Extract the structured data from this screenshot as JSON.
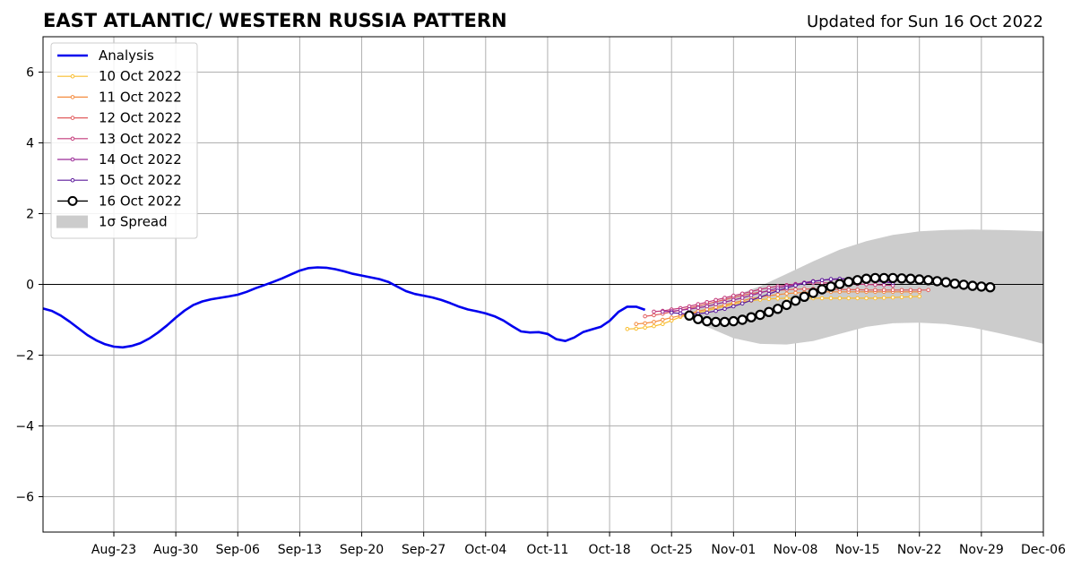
{
  "chart_data": {
    "type": "line",
    "title": "EAST ATLANTIC/ WESTERN RUSSIA PATTERN",
    "subtitle": "Updated for Sun 16 Oct 2022",
    "xlabel": "",
    "ylabel": "",
    "xlim": [
      "2022-08-15",
      "2022-12-06"
    ],
    "ylim": [
      -7,
      7
    ],
    "grid": true,
    "zero_line": true,
    "legend_position": "top-left",
    "x_tick_labels": [
      "Aug-23",
      "Aug-30",
      "Sep-06",
      "Sep-13",
      "Sep-20",
      "Sep-27",
      "Oct-04",
      "Oct-11",
      "Oct-18",
      "Oct-25",
      "Nov-01",
      "Nov-08",
      "Nov-15",
      "Nov-22",
      "Nov-29",
      "Dec-06"
    ],
    "x_tick_dates": [
      "2022-08-23",
      "2022-08-30",
      "2022-09-06",
      "2022-09-13",
      "2022-09-20",
      "2022-09-27",
      "2022-10-04",
      "2022-10-11",
      "2022-10-18",
      "2022-10-25",
      "2022-11-01",
      "2022-11-08",
      "2022-11-15",
      "2022-11-22",
      "2022-11-29",
      "2022-12-06"
    ],
    "y_ticks": [
      6,
      4,
      2,
      0,
      -2,
      -4,
      -6
    ],
    "y_tick_labels": [
      "6",
      "4",
      "2",
      "0",
      "−2",
      "−4",
      "−6"
    ],
    "analysis": {
      "name": "Analysis",
      "color": "#0000ee",
      "points": [
        [
          "2022-08-15",
          -0.68
        ],
        [
          "2022-08-16",
          -0.75
        ],
        [
          "2022-08-17",
          -0.88
        ],
        [
          "2022-08-18",
          -1.05
        ],
        [
          "2022-08-19",
          -1.24
        ],
        [
          "2022-08-20",
          -1.43
        ],
        [
          "2022-08-21",
          -1.58
        ],
        [
          "2022-08-22",
          -1.69
        ],
        [
          "2022-08-23",
          -1.76
        ],
        [
          "2022-08-24",
          -1.78
        ],
        [
          "2022-08-25",
          -1.74
        ],
        [
          "2022-08-26",
          -1.66
        ],
        [
          "2022-08-27",
          -1.53
        ],
        [
          "2022-08-28",
          -1.36
        ],
        [
          "2022-08-29",
          -1.16
        ],
        [
          "2022-08-30",
          -0.94
        ],
        [
          "2022-08-31",
          -0.74
        ],
        [
          "2022-09-01",
          -0.58
        ],
        [
          "2022-09-02",
          -0.48
        ],
        [
          "2022-09-03",
          -0.42
        ],
        [
          "2022-09-04",
          -0.38
        ],
        [
          "2022-09-05",
          -0.34
        ],
        [
          "2022-09-06",
          -0.29
        ],
        [
          "2022-09-07",
          -0.21
        ],
        [
          "2022-09-08",
          -0.11
        ],
        [
          "2022-09-09",
          -0.02
        ],
        [
          "2022-09-10",
          0.07
        ],
        [
          "2022-09-11",
          0.17
        ],
        [
          "2022-09-12",
          0.28
        ],
        [
          "2022-09-13",
          0.39
        ],
        [
          "2022-09-14",
          0.46
        ],
        [
          "2022-09-15",
          0.48
        ],
        [
          "2022-09-16",
          0.47
        ],
        [
          "2022-09-17",
          0.43
        ],
        [
          "2022-09-18",
          0.37
        ],
        [
          "2022-09-19",
          0.3
        ],
        [
          "2022-09-20",
          0.25
        ],
        [
          "2022-09-21",
          0.2
        ],
        [
          "2022-09-22",
          0.15
        ],
        [
          "2022-09-23",
          0.07
        ],
        [
          "2022-09-24",
          -0.06
        ],
        [
          "2022-09-25",
          -0.19
        ],
        [
          "2022-09-26",
          -0.27
        ],
        [
          "2022-09-27",
          -0.32
        ],
        [
          "2022-09-28",
          -0.37
        ],
        [
          "2022-09-29",
          -0.44
        ],
        [
          "2022-09-30",
          -0.53
        ],
        [
          "2022-10-01",
          -0.63
        ],
        [
          "2022-10-02",
          -0.71
        ],
        [
          "2022-10-03",
          -0.76
        ],
        [
          "2022-10-04",
          -0.82
        ],
        [
          "2022-10-05",
          -0.9
        ],
        [
          "2022-10-06",
          -1.02
        ],
        [
          "2022-10-07",
          -1.18
        ],
        [
          "2022-10-08",
          -1.33
        ],
        [
          "2022-10-09",
          -1.36
        ],
        [
          "2022-10-10",
          -1.35
        ],
        [
          "2022-10-11",
          -1.4
        ],
        [
          "2022-10-12",
          -1.55
        ],
        [
          "2022-10-13",
          -1.6
        ],
        [
          "2022-10-14",
          -1.5
        ],
        [
          "2022-10-15",
          -1.35
        ],
        [
          "2022-10-16",
          -1.27
        ],
        [
          "2022-10-17",
          -1.2
        ],
        [
          "2022-10-18",
          -1.03
        ],
        [
          "2022-10-19",
          -0.78
        ],
        [
          "2022-10-20",
          -0.63
        ],
        [
          "2022-10-21",
          -0.63
        ],
        [
          "2022-10-22",
          -0.72
        ]
      ]
    },
    "spread": {
      "name": "1σ Spread",
      "color": "#cccccc",
      "upper": [
        [
          "2022-10-27",
          -0.65
        ],
        [
          "2022-10-29",
          -0.55
        ],
        [
          "2022-11-01",
          -0.33
        ],
        [
          "2022-11-04",
          -0.05
        ],
        [
          "2022-11-07",
          0.3
        ],
        [
          "2022-11-10",
          0.65
        ],
        [
          "2022-11-13",
          0.98
        ],
        [
          "2022-11-16",
          1.22
        ],
        [
          "2022-11-19",
          1.4
        ],
        [
          "2022-11-22",
          1.5
        ],
        [
          "2022-11-25",
          1.54
        ],
        [
          "2022-11-28",
          1.55
        ],
        [
          "2022-12-01",
          1.54
        ],
        [
          "2022-12-04",
          1.52
        ],
        [
          "2022-12-06",
          1.5
        ]
      ],
      "lower": [
        [
          "2022-10-27",
          -0.85
        ],
        [
          "2022-10-29",
          -1.2
        ],
        [
          "2022-11-01",
          -1.52
        ],
        [
          "2022-11-04",
          -1.68
        ],
        [
          "2022-11-07",
          -1.7
        ],
        [
          "2022-11-10",
          -1.6
        ],
        [
          "2022-11-13",
          -1.4
        ],
        [
          "2022-11-16",
          -1.2
        ],
        [
          "2022-11-19",
          -1.1
        ],
        [
          "2022-11-22",
          -1.08
        ],
        [
          "2022-11-25",
          -1.12
        ],
        [
          "2022-11-28",
          -1.22
        ],
        [
          "2022-12-01",
          -1.38
        ],
        [
          "2022-12-04",
          -1.55
        ],
        [
          "2022-12-06",
          -1.68
        ]
      ]
    },
    "series": [
      {
        "name": "10 Oct 2022",
        "color": "#f9bd2e",
        "start": "2022-10-20",
        "values": [
          -1.26,
          -1.25,
          -1.22,
          -1.18,
          -1.12,
          -1.02,
          -0.92,
          -0.85,
          -0.8,
          -0.74,
          -0.68,
          -0.62,
          -0.56,
          -0.5,
          -0.46,
          -0.43,
          -0.41,
          -0.4,
          -0.39,
          -0.39,
          -0.39,
          -0.39,
          -0.39,
          -0.39,
          -0.39,
          -0.39,
          -0.39,
          -0.39,
          -0.39,
          -0.38,
          -0.37,
          -0.36,
          -0.35,
          -0.34
        ]
      },
      {
        "name": "11 Oct 2022",
        "color": "#f48b3e",
        "start": "2022-10-21",
        "values": [
          -1.12,
          -1.1,
          -1.06,
          -1.0,
          -0.94,
          -0.88,
          -0.82,
          -0.76,
          -0.7,
          -0.64,
          -0.58,
          -0.52,
          -0.46,
          -0.4,
          -0.36,
          -0.32,
          -0.29,
          -0.26,
          -0.24,
          -0.23,
          -0.22,
          -0.21,
          -0.21,
          -0.21,
          -0.21,
          -0.21,
          -0.21,
          -0.21,
          -0.21,
          -0.21,
          -0.21,
          -0.21,
          -0.21
        ]
      },
      {
        "name": "12 Oct 2022",
        "color": "#e15d5e",
        "start": "2022-10-22",
        "values": [
          -0.9,
          -0.87,
          -0.83,
          -0.78,
          -0.73,
          -0.67,
          -0.61,
          -0.55,
          -0.49,
          -0.43,
          -0.37,
          -0.31,
          -0.26,
          -0.22,
          -0.19,
          -0.17,
          -0.15,
          -0.14,
          -0.13,
          -0.13,
          -0.13,
          -0.14,
          -0.14,
          -0.15,
          -0.15,
          -0.16,
          -0.16,
          -0.16,
          -0.16,
          -0.16,
          -0.16,
          -0.16,
          -0.16
        ]
      },
      {
        "name": "13 Oct 2022",
        "color": "#c43a7a",
        "start": "2022-10-23",
        "values": [
          -0.77,
          -0.75,
          -0.71,
          -0.67,
          -0.62,
          -0.56,
          -0.5,
          -0.44,
          -0.38,
          -0.32,
          -0.26,
          -0.2,
          -0.14,
          -0.09,
          -0.05,
          -0.02,
          0.01,
          0.03,
          0.04,
          0.04,
          0.04,
          0.03,
          0.02,
          0.01,
          0.0,
          -0.01,
          -0.02,
          -0.03
        ]
      },
      {
        "name": "14 Oct 2022",
        "color": "#9b2a97",
        "start": "2022-10-24",
        "values": [
          -0.77,
          -0.76,
          -0.73,
          -0.7,
          -0.66,
          -0.62,
          -0.56,
          -0.5,
          -0.44,
          -0.38,
          -0.31,
          -0.24,
          -0.17,
          -0.11,
          -0.05,
          0.0,
          0.05,
          0.09,
          0.12,
          0.14,
          0.15,
          0.15,
          0.14,
          0.12,
          0.1,
          0.08,
          0.05
        ]
      },
      {
        "name": "15 Oct 2022",
        "color": "#5c1a9c",
        "start": "2022-10-25",
        "values": [
          -0.8,
          -0.82,
          -0.84,
          -0.83,
          -0.8,
          -0.75,
          -0.69,
          -0.62,
          -0.54,
          -0.45,
          -0.36,
          -0.27,
          -0.18,
          -0.1,
          -0.03,
          0.03,
          0.08,
          0.12,
          0.15,
          0.16,
          0.16,
          0.15,
          0.13,
          0.1,
          0.07,
          0.04
        ]
      },
      {
        "name": "16 Oct 2022",
        "color": "#000000",
        "start": "2022-10-27",
        "values": [
          -0.88,
          -0.98,
          -1.04,
          -1.06,
          -1.06,
          -1.04,
          -1.0,
          -0.93,
          -0.86,
          -0.78,
          -0.69,
          -0.58,
          -0.46,
          -0.35,
          -0.24,
          -0.14,
          -0.06,
          0.01,
          0.07,
          0.12,
          0.16,
          0.18,
          0.18,
          0.18,
          0.17,
          0.16,
          0.14,
          0.12,
          0.09,
          0.06,
          0.02,
          -0.01,
          -0.04,
          -0.06,
          -0.08
        ]
      }
    ],
    "legend": [
      "Analysis",
      "10 Oct 2022",
      "11 Oct 2022",
      "12 Oct 2022",
      "13 Oct 2022",
      "14 Oct 2022",
      "15 Oct 2022",
      "16 Oct 2022",
      "1σ Spread"
    ]
  }
}
